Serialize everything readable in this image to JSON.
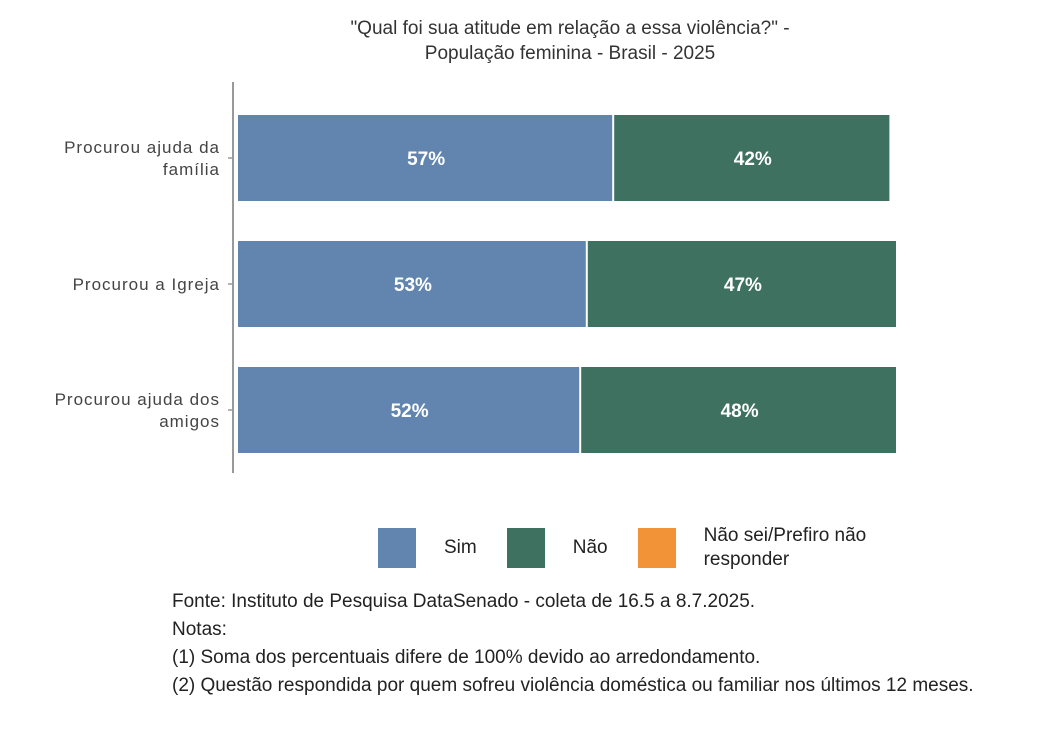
{
  "chart_data": {
    "type": "bar",
    "orientation": "horizontal",
    "stacked": true,
    "title": "\"Qual foi sua atitude em relação a essa violência?\" -",
    "subtitle": "População feminina - Brasil - 2025",
    "categories": [
      "Procurou ajuda da família",
      "Procurou a Igreja",
      "Procurou ajuda dos amigos"
    ],
    "category_lines": [
      [
        "Procurou ajuda da",
        "família"
      ],
      [
        "Procurou a Igreja"
      ],
      [
        "Procurou ajuda dos",
        "amigos"
      ]
    ],
    "series": [
      {
        "name": "Sim",
        "color": "#6285b0",
        "values": [
          57,
          53,
          52
        ],
        "labels": [
          "57%",
          "53%",
          "52%"
        ]
      },
      {
        "name": "Não",
        "color": "#3e7160",
        "values": [
          42,
          47,
          48
        ],
        "labels": [
          "42%",
          "47%",
          "48%"
        ]
      },
      {
        "name": "Não sei/Prefiro não responder",
        "color": "#f39337",
        "values": [
          0,
          0,
          0
        ],
        "labels": [
          "",
          "",
          ""
        ]
      }
    ],
    "xlim": [
      0,
      100
    ],
    "grid": false,
    "legend_position": "bottom"
  },
  "legend": [
    {
      "label": "Sim",
      "color": "#6285b0"
    },
    {
      "label": "Não",
      "color": "#3e7160"
    },
    {
      "label": "Não sei/Prefiro não responder",
      "color": "#f39337"
    }
  ],
  "notes": {
    "source": "Fonte: Instituto de Pesquisa DataSenado - coleta de 16.5 a 8.7.2025.",
    "heading": "Notas:",
    "note1": "(1) Soma dos percentuais difere de 100% devido ao arredondamento.",
    "note2": "(2) Questão respondida por quem sofreu violência doméstica ou familiar nos últimos 12 meses."
  }
}
